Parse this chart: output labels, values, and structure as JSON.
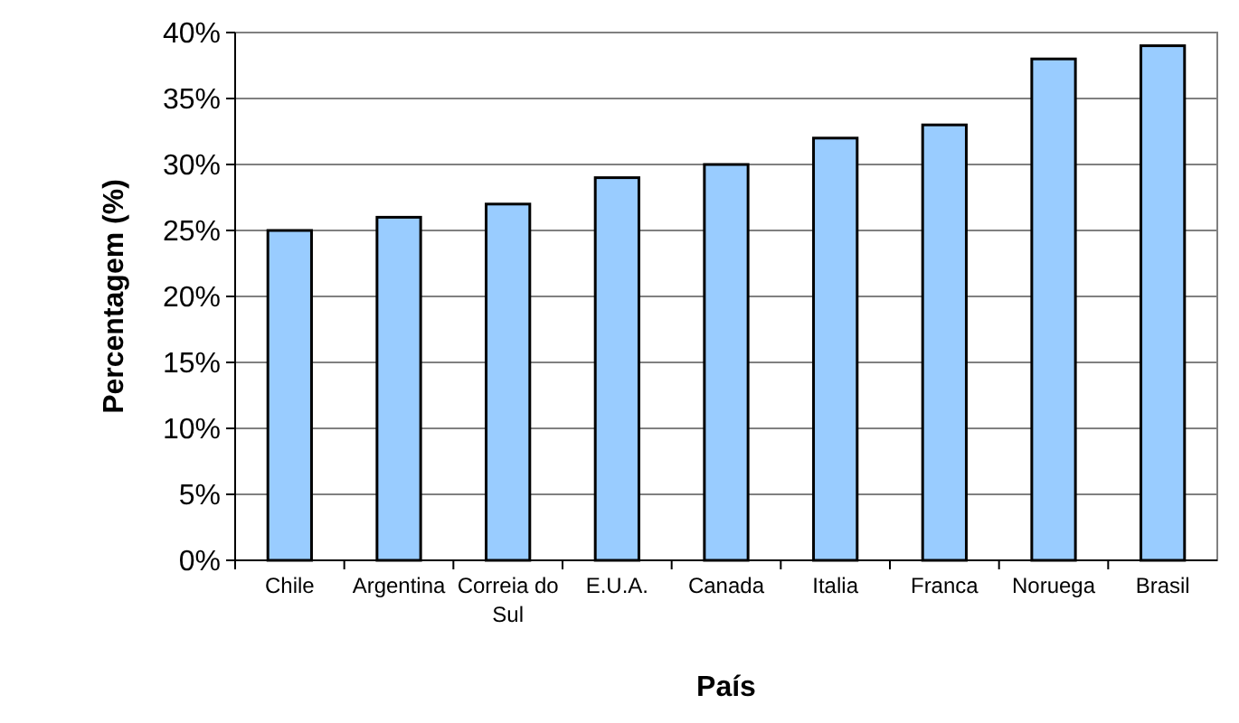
{
  "chart_data": {
    "type": "bar",
    "xlabel": "País",
    "ylabel": "Percentagem (%)",
    "categories": [
      "Chile",
      "Argentina",
      "Correia do Sul",
      "E.U.A.",
      "Canada",
      "Italia",
      "Franca",
      "Noruega",
      "Brasil"
    ],
    "values": [
      25,
      26,
      27,
      29,
      30,
      32,
      33,
      38,
      39
    ],
    "color": "#99ccff",
    "ylim": [
      0,
      40
    ],
    "yticks": [
      {
        "value": 0,
        "label": "0%"
      },
      {
        "value": 5,
        "label": "5%"
      },
      {
        "value": 10,
        "label": "10%"
      },
      {
        "value": 15,
        "label": "15%"
      },
      {
        "value": 20,
        "label": "20%"
      },
      {
        "value": 25,
        "label": "25%"
      },
      {
        "value": 30,
        "label": "30%"
      },
      {
        "value": 35,
        "label": "35%"
      },
      {
        "value": 40,
        "label": "40%"
      }
    ],
    "grid": "y"
  }
}
